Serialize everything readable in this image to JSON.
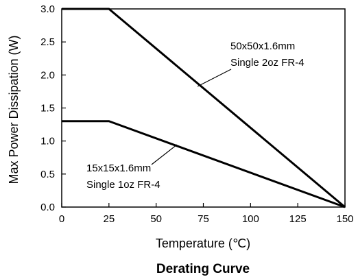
{
  "chart_data": {
    "type": "line",
    "title": "Derating Curve",
    "xlabel": "Temperature (℃)",
    "ylabel": "Max Power Dissipation (W)",
    "xlim": [
      0,
      150
    ],
    "ylim": [
      0,
      3.0
    ],
    "x_ticks": [
      "0",
      "25",
      "50",
      "75",
      "100",
      "125",
      "150"
    ],
    "y_ticks": [
      "0.0",
      "0.5",
      "1.0",
      "1.5",
      "2.0",
      "2.5",
      "3.0"
    ],
    "grid": false,
    "series": [
      {
        "label_lines": [
          "50x50x1.6mm",
          "Single 2oz FR-4"
        ],
        "x": [
          0,
          25,
          150
        ],
        "y": [
          3.0,
          3.0,
          0.0
        ]
      },
      {
        "label_lines": [
          "15x15x1.6mm",
          "Single 1oz FR-4"
        ],
        "x": [
          0,
          25,
          150
        ],
        "y": [
          1.3,
          1.3,
          0.0
        ]
      }
    ]
  }
}
